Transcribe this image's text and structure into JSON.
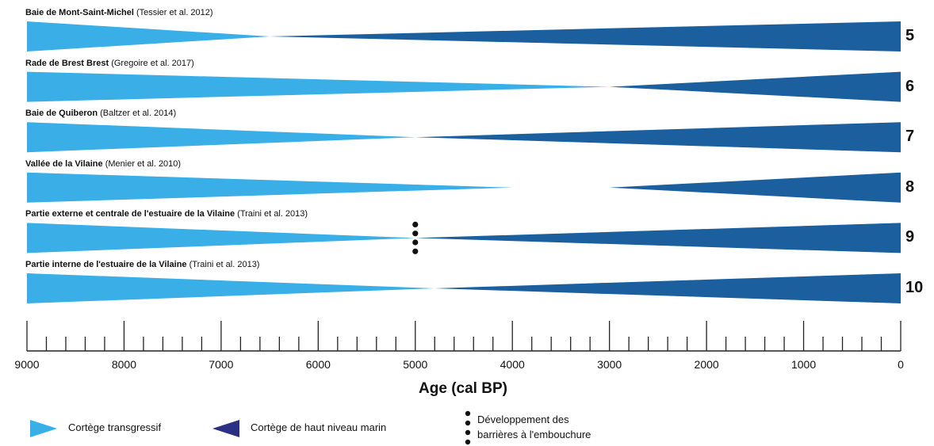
{
  "rows": [
    {
      "title": "Baie de Mont-Saint-Michel",
      "citation": "(Tessier et al. 2012)",
      "number": "5",
      "transgressive_end_age": 6500,
      "highstand_start_age": 6500
    },
    {
      "title": "Rade de Brest Brest",
      "citation": "(Gregoire et al. 2017)",
      "number": "6",
      "transgressive_end_age": 3000,
      "highstand_start_age": 3000
    },
    {
      "title": "Baie de Quiberon",
      "citation": "(Baltzer et al. 2014)",
      "number": "7",
      "transgressive_end_age": 5000,
      "highstand_start_age": 5000
    },
    {
      "title": "Vallée de la Vilaine",
      "citation": "(Menier et al. 2010)",
      "number": "8",
      "transgressive_end_age": 4000,
      "highstand_start_age": 3000
    },
    {
      "title": "Partie externe et centrale de l'estuaire de la Vilaine",
      "citation": "(Traini et al. 2013)",
      "number": "9",
      "transgressive_end_age": 5000,
      "highstand_start_age": 5000,
      "barrier_age": 5000
    },
    {
      "title": "Partie interne de l'estuaire de la Vilaine",
      "citation": "(Traini et al. 2013)",
      "number": "10",
      "transgressive_end_age": 4800,
      "highstand_start_age": 4800
    }
  ],
  "axis": {
    "title": "Age (cal BP)",
    "min": 9000,
    "max": 0,
    "tick_labels": [
      "9000",
      "8000",
      "7000",
      "6000",
      "5000",
      "4000",
      "3000",
      "2000",
      "1000",
      "0"
    ],
    "minor_step": 200
  },
  "legend": {
    "transgressive": "Cortège transgressif",
    "highstand": "Cortège de haut niveau marin",
    "barrier_line1": "Développement des",
    "barrier_line2": "barrières à l'embouchure"
  },
  "colors": {
    "transgressive": "#3aaee6",
    "highstand": "#1b5f9e",
    "legend_highstand": "#2b2f86",
    "axis": "#222222"
  }
}
